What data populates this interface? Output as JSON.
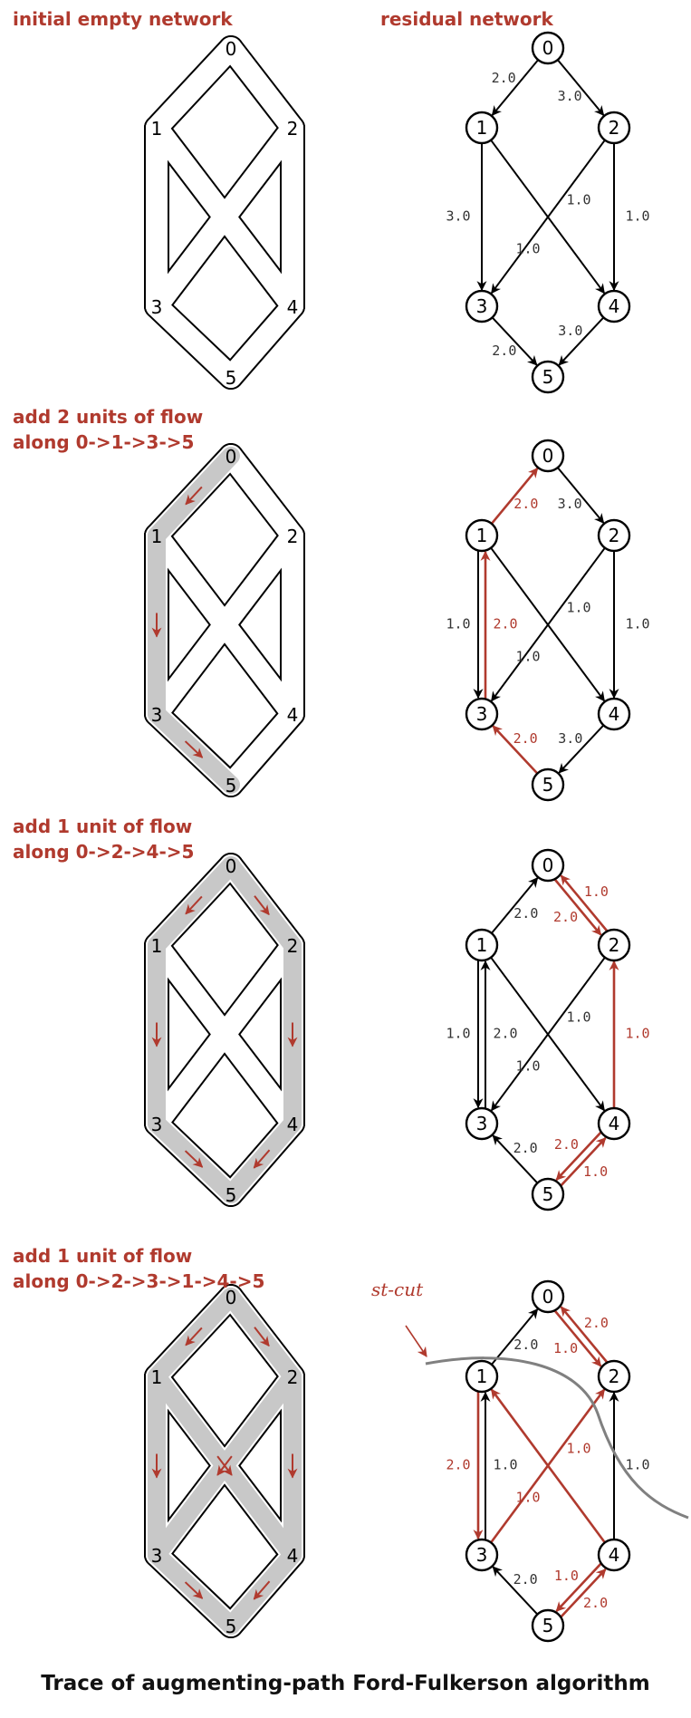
{
  "caption": "Trace of augmenting-path Ford-Fulkerson algorithm",
  "colors": {
    "accent": "#b03a2e",
    "flow_highlight": "#c8c8c8",
    "edge": "#000000",
    "cut_line": "#808080"
  },
  "node_labels": [
    "0",
    "1",
    "2",
    "3",
    "4",
    "5"
  ],
  "edges": [
    [
      0,
      1
    ],
    [
      0,
      2
    ],
    [
      1,
      3
    ],
    [
      1,
      4
    ],
    [
      2,
      3
    ],
    [
      2,
      4
    ],
    [
      3,
      5
    ],
    [
      4,
      5
    ]
  ],
  "steps": [
    {
      "heading_lines": [
        "initial empty network"
      ],
      "residual_title": "residual network",
      "highlight_edges": [],
      "flow_arrows": [],
      "residual_edges": [
        {
          "from": 0,
          "to": 1,
          "label": "2.0",
          "red": false
        },
        {
          "from": 0,
          "to": 2,
          "label": "3.0",
          "red": false
        },
        {
          "from": 1,
          "to": 3,
          "label": "3.0",
          "red": false
        },
        {
          "from": 1,
          "to": 4,
          "label": "1.0",
          "red": false
        },
        {
          "from": 2,
          "to": 3,
          "label": "1.0",
          "red": false
        },
        {
          "from": 2,
          "to": 4,
          "label": "1.0",
          "red": false
        },
        {
          "from": 3,
          "to": 5,
          "label": "2.0",
          "red": false
        },
        {
          "from": 4,
          "to": 5,
          "label": "3.0",
          "red": false
        }
      ]
    },
    {
      "heading_lines": [
        "add 2 units of flow",
        "along 0->1->3->5"
      ],
      "highlight_edges": [
        [
          0,
          1
        ],
        [
          1,
          3
        ],
        [
          3,
          5
        ]
      ],
      "flow_arrows": [
        [
          0,
          1
        ],
        [
          1,
          3
        ],
        [
          3,
          5
        ]
      ],
      "residual_edges": [
        {
          "from": 1,
          "to": 0,
          "label": "2.0",
          "red": true
        },
        {
          "from": 0,
          "to": 2,
          "label": "3.0",
          "red": false
        },
        {
          "from": 1,
          "to": 3,
          "label": "1.0",
          "red": false
        },
        {
          "from": 3,
          "to": 1,
          "label": "2.0",
          "red": true
        },
        {
          "from": 1,
          "to": 4,
          "label": "1.0",
          "red": false
        },
        {
          "from": 2,
          "to": 3,
          "label": "1.0",
          "red": false
        },
        {
          "from": 2,
          "to": 4,
          "label": "1.0",
          "red": false
        },
        {
          "from": 5,
          "to": 3,
          "label": "2.0",
          "red": true
        },
        {
          "from": 4,
          "to": 5,
          "label": "3.0",
          "red": false
        }
      ]
    },
    {
      "heading_lines": [
        "add 1 unit of flow",
        "along 0->2->4->5"
      ],
      "highlight_edges": [
        [
          0,
          1
        ],
        [
          1,
          3
        ],
        [
          3,
          5
        ],
        [
          0,
          2
        ],
        [
          2,
          4
        ],
        [
          4,
          5
        ]
      ],
      "flow_arrows": [
        [
          0,
          1
        ],
        [
          1,
          3
        ],
        [
          3,
          5
        ],
        [
          0,
          2
        ],
        [
          2,
          4
        ],
        [
          4,
          5
        ]
      ],
      "residual_edges": [
        {
          "from": 1,
          "to": 0,
          "label": "2.0",
          "red": false
        },
        {
          "from": 0,
          "to": 2,
          "label": "2.0",
          "red": true
        },
        {
          "from": 2,
          "to": 0,
          "label": "1.0",
          "red": true
        },
        {
          "from": 1,
          "to": 3,
          "label": "1.0",
          "red": false
        },
        {
          "from": 3,
          "to": 1,
          "label": "2.0",
          "red": false
        },
        {
          "from": 1,
          "to": 4,
          "label": "1.0",
          "red": false
        },
        {
          "from": 2,
          "to": 3,
          "label": "1.0",
          "red": false
        },
        {
          "from": 4,
          "to": 2,
          "label": "1.0",
          "red": true
        },
        {
          "from": 5,
          "to": 3,
          "label": "2.0",
          "red": false
        },
        {
          "from": 4,
          "to": 5,
          "label": "2.0",
          "red": true
        },
        {
          "from": 5,
          "to": 4,
          "label": "1.0",
          "red": true
        }
      ]
    },
    {
      "heading_lines": [
        "add 1 unit of flow",
        "along 0->2->3->1->4->5"
      ],
      "highlight_edges": [
        [
          0,
          1
        ],
        [
          1,
          3
        ],
        [
          3,
          5
        ],
        [
          0,
          2
        ],
        [
          2,
          4
        ],
        [
          4,
          5
        ],
        [
          2,
          3
        ],
        [
          1,
          4
        ]
      ],
      "flow_arrows": [
        [
          0,
          1
        ],
        [
          1,
          3
        ],
        [
          3,
          5
        ],
        [
          0,
          2
        ],
        [
          2,
          4
        ],
        [
          4,
          5
        ],
        [
          2,
          3
        ],
        [
          1,
          4
        ]
      ],
      "cut_label": "st-cut",
      "residual_edges": [
        {
          "from": 1,
          "to": 0,
          "label": "2.0",
          "red": false
        },
        {
          "from": 0,
          "to": 2,
          "label": "1.0",
          "red": true
        },
        {
          "from": 2,
          "to": 0,
          "label": "2.0",
          "red": true
        },
        {
          "from": 3,
          "to": 1,
          "label": "1.0",
          "red": false
        },
        {
          "from": 1,
          "to": 3,
          "label": "2.0",
          "red": true
        },
        {
          "from": 4,
          "to": 1,
          "label": "1.0",
          "red": true
        },
        {
          "from": 3,
          "to": 2,
          "label": "1.0",
          "red": true
        },
        {
          "from": 4,
          "to": 2,
          "label": "1.0",
          "red": false
        },
        {
          "from": 5,
          "to": 3,
          "label": "2.0",
          "red": false
        },
        {
          "from": 5,
          "to": 4,
          "label": "2.0",
          "red": true
        },
        {
          "from": 4,
          "to": 5,
          "label": "1.0",
          "red": true
        }
      ]
    }
  ]
}
